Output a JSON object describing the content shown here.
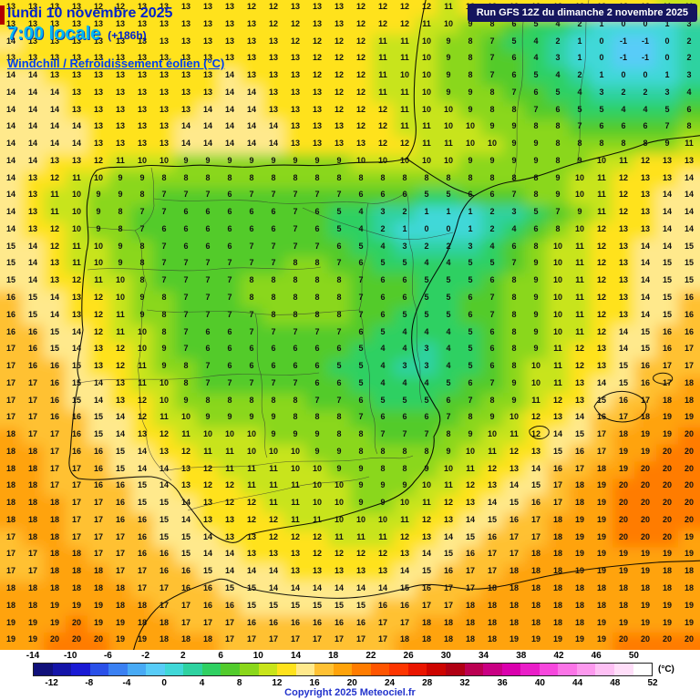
{
  "header": {
    "date_line": "lundi 10 novembre 2025",
    "time_line": "7:00 locale",
    "offset_label": "(+186h)",
    "param_label": "Windchill / Refroidissement éolien (°C)",
    "run_label": "Run GFS 12Z du dimanche 2 novembre 2025"
  },
  "footer": {
    "copyright": "Copyright 2025 Meteociel.fr",
    "unit_label": "(°C)"
  },
  "scale": {
    "min": -14,
    "max": 52,
    "step": 2,
    "colors": [
      "#10107a",
      "#1414a8",
      "#1a1ad4",
      "#2a50e8",
      "#3a80f2",
      "#48aaf5",
      "#58ccf8",
      "#40d8d8",
      "#2ed2a0",
      "#2fd062",
      "#52cb2c",
      "#8ad71a",
      "#c8e41a",
      "#ffe21c",
      "#ffe98c",
      "#ffc133",
      "#ffa30a",
      "#ff7c00",
      "#ff5500",
      "#fd3500",
      "#ea1500",
      "#cd0400",
      "#b00013",
      "#bb0051",
      "#c90083",
      "#da00ad",
      "#ea1ec8",
      "#f747dd",
      "#fb74e7",
      "#fd99ee",
      "#fec0f4",
      "#ffdef9",
      "#ffffff"
    ],
    "ticks_top": [
      -14,
      -10,
      -6,
      -2,
      2,
      6,
      10,
      14,
      18,
      22,
      26,
      30,
      34,
      38,
      42,
      46,
      50
    ],
    "ticks_bottom": [
      -12,
      -8,
      -4,
      0,
      4,
      8,
      12,
      16,
      20,
      24,
      28,
      32,
      36,
      40,
      44,
      48,
      52
    ]
  },
  "grid": {
    "cols": 32,
    "rows": 38,
    "values": [
      "13 13 13 13 12 12 13 13 13 13 13 12 12 13 13 13 12 12 12 12 11 12 12 12 12 12 12 13 13 12 11 11",
      "13 13 13 13 13 13 13 13 13 13 13 13 12 12 13 13 12 12 12 11 10 9 8 6 5 4 2 1 0 0 1 3",
      "14 13 13 13 13 13 13 13 13 13 13 13 13 12 12 12 12 11 11 10 9 8 7 5 4 2 1 0 -1 -1 0 2",
      "13 13 13 13 13 13 13 13 13 13 13 13 13 13 12 12 12 11 11 10 9 8 7 6 4 3 1 0 -1 -1 0 2",
      "14 14 13 13 13 13 13 13 13 13 14 13 13 13 12 12 12 11 10 10 9 8 7 6 5 4 2 1 0 0 1 3",
      "14 14 14 13 13 13 13 13 13 13 14 14 13 13 13 12 12 11 11 10 9 9 8 7 6 5 4 3 2 2 3 4",
      "14 14 14 13 13 13 13 13 13 14 14 14 13 13 13 12 12 12 11 10 10 9 8 8 7 6 5 5 4 4 5 6",
      "14 14 14 14 13 13 13 13 14 14 14 14 14 13 13 13 12 12 11 11 10 10 9 9 8 8 7 6 6 6 7 8",
      "14 14 14 14 13 13 13 13 14 14 14 14 14 13 13 13 13 12 12 11 11 10 10 9 9 8 8 8 8 8 9 11",
      "14 14 13 13 12 11 10 10 9 9 9 9 9 9 9 9 10 10 10 10 10 9 9 9 9 8 9 10 11 12 13 13",
      "14 13 12 11 10 9 9 8 8 8 8 8 8 8 8 8 8 8 8 8 8 8 8 8 8 9 10 11 12 13 13 14",
      "14 13 11 10 9 9 8 7 7 7 6 7 7 7 7 7 6 6 6 5 5 6 6 7 8 9 10 11 12 13 14 14",
      "14 13 11 10 9 8 7 7 6 6 6 6 6 7 6 5 4 3 2 1 1 1 2 3 5 7 9 11 12 13 14 14",
      "14 13 12 10 9 8 7 6 6 6 6 6 6 7 6 5 4 2 1 0 0 1 2 4 6 8 10 12 13 13 14 14",
      "15 14 12 11 10 9 8 7 6 6 6 7 7 7 7 6 5 4 3 2 2 3 4 6 8 10 11 12 13 14 14 15",
      "15 14 13 11 10 9 8 7 7 7 7 7 7 8 8 7 6 5 5 4 4 5 5 7 9 10 11 12 13 14 15 15",
      "15 14 13 12 11 10 8 7 7 7 7 8 8 8 8 8 7 6 6 5 5 5 6 8 9 10 11 12 13 14 15 15",
      "16 15 14 13 12 10 9 8 7 7 7 8 8 8 8 8 7 6 6 5 5 6 7 8 9 10 11 12 13 14 15 16",
      "16 15 14 13 12 11 9 8 7 7 7 7 8 8 8 8 7 6 5 5 5 6 7 8 9 10 11 12 13 14 15 16",
      "16 16 15 14 12 11 10 8 7 6 6 7 7 7 7 7 6 5 4 4 4 5 6 8 9 10 11 12 14 15 16 16",
      "17 16 15 14 13 12 10 9 7 6 6 6 6 6 6 6 5 4 4 3 4 5 6 8 9 11 12 13 14 15 16 17",
      "17 16 16 15 13 12 11 9 8 7 6 6 6 6 6 5 5 4 3 3 4 5 6 8 10 11 12 13 15 16 17 17",
      "17 17 16 15 14 13 11 10 8 7 7 7 7 7 6 6 5 4 4 4 5 6 7 9 10 11 13 14 15 16 17 18",
      "17 17 16 15 14 13 12 10 9 8 8 8 8 8 7 7 6 5 5 5 6 7 8 9 11 12 13 15 16 17 18 18",
      "17 17 16 16 15 14 12 11 10 9 9 9 9 8 8 8 7 6 6 6 7 8 9 10 12 13 14 16 17 18 19 19",
      "18 17 17 16 15 14 13 12 11 10 10 10 9 9 9 8 8 7 7 7 8 9 10 11 12 14 15 17 18 19 19 20",
      "18 18 17 16 16 15 14 13 12 11 11 10 10 10 9 9 8 8 8 8 9 10 11 12 13 15 16 17 19 19 20 20",
      "18 18 17 17 16 15 14 14 13 12 11 11 11 10 10 9 9 8 8 9 10 11 12 13 14 16 17 18 19 20 20 20",
      "18 18 17 17 16 16 15 14 13 12 12 11 11 11 10 10 9 9 9 10 11 12 13 14 15 17 18 19 20 20 20 20",
      "18 18 18 17 17 16 15 15 14 13 12 12 11 11 10 10 9 9 10 11 12 13 14 15 16 17 18 19 20 20 20 20",
      "18 18 18 17 17 16 16 15 14 13 13 12 12 11 11 10 10 10 11 12 13 14 15 16 17 18 19 19 20 20 20 20",
      "17 18 18 17 17 17 16 15 15 14 13 13 12 12 12 11 11 11 12 13 14 15 16 17 17 18 19 19 20 20 20 19",
      "17 17 18 18 17 17 16 16 15 14 14 13 13 13 12 12 12 12 13 14 15 16 17 17 18 18 19 19 19 19 19 19",
      "17 17 18 18 18 17 17 16 16 15 14 14 14 13 13 13 13 13 14 15 16 17 17 18 18 18 19 19 19 19 18 18",
      "18 18 18 18 18 18 17 17 16 16 15 15 14 14 14 14 14 14 15 16 17 17 18 18 18 18 18 18 18 18 18 18",
      "18 18 19 19 19 18 18 17 17 16 16 15 15 15 15 15 15 16 16 17 17 18 18 18 18 18 18 18 18 19 19 19",
      "19 19 19 20 19 19 18 18 17 17 17 16 16 16 16 16 16 17 17 18 18 18 18 18 18 18 18 19 19 19 19 19",
      "19 19 20 20 20 19 19 18 18 18 17 17 17 17 17 17 17 17 18 18 18 18 18 19 19 19 19 19 20 20 20 20"
    ]
  }
}
